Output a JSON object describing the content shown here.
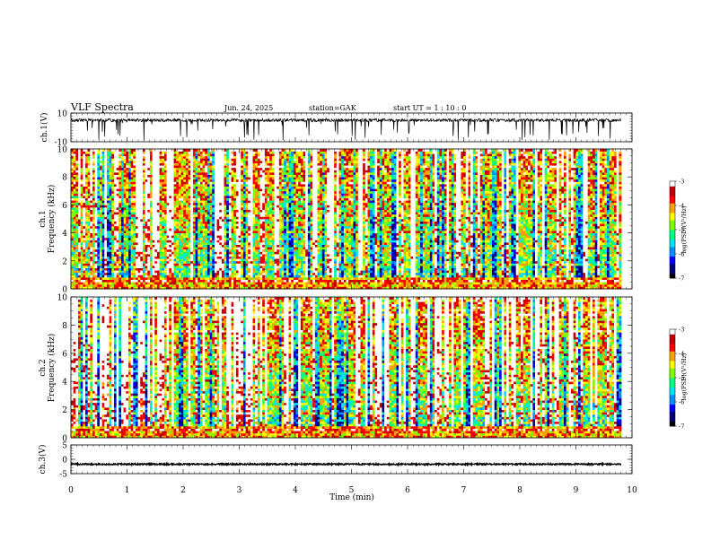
{
  "header": {
    "title": "VLF Spectra",
    "date": "Jun. 24, 2025",
    "station": "station=GAK",
    "start_ut": "start UT = 1 : 10 : 0"
  },
  "colors": {
    "trace": "#000000",
    "colormap": [
      "#000000",
      "#00007a",
      "#0000ff",
      "#0090ff",
      "#00e0ff",
      "#00ff80",
      "#80ff00",
      "#ffff00",
      "#ffa000",
      "#ff0000",
      "#c00000",
      "#ffffff"
    ]
  },
  "chart_data": [
    {
      "type": "line",
      "id": "ch1-waveform",
      "ylabel": "ch.1(V)",
      "ylim": [
        -10,
        10
      ],
      "y_ticks": [
        "10",
        "-10"
      ],
      "xlim": [
        0,
        10
      ],
      "description_level": "noisy waveform centered near +5 V with bursts reaching ±10 V"
    },
    {
      "type": "heatmap",
      "id": "ch1-spectrogram",
      "ylabel": "ch.1\nFrequency (kHz)",
      "ylabel_line1": "ch.1",
      "ylabel_line2": "Frequency (kHz)",
      "ylim": [
        0,
        10
      ],
      "y_ticks": [
        "0",
        "2",
        "4",
        "6",
        "8",
        "10"
      ],
      "xlim": [
        0,
        9.8
      ],
      "colorbar": {
        "label": "log(PSD)(V²/Hz)",
        "range": [
          -7,
          -3
        ],
        "ticks": [
          "-3",
          "-4",
          "-5",
          "-6",
          "-7"
        ]
      }
    },
    {
      "type": "heatmap",
      "id": "ch2-spectrogram",
      "ylabel": "ch.2\nFrequency (kHz)",
      "ylabel_line1": "ch.2",
      "ylabel_line2": "Frequency (kHz)",
      "ylim": [
        0,
        10
      ],
      "y_ticks": [
        "0",
        "2",
        "4",
        "6",
        "8",
        "10"
      ],
      "xlim": [
        0,
        9.8
      ],
      "colorbar": {
        "label": "log(PSD)(V²/Hz)",
        "range": [
          -7,
          -3
        ],
        "ticks": [
          "-3",
          "-4",
          "-5",
          "-6",
          "-7"
        ]
      }
    },
    {
      "type": "line",
      "id": "ch3-waveform",
      "ylabel": "ch.3(V)",
      "ylim": [
        -5,
        5
      ],
      "y_ticks": [
        "5",
        "0",
        "-5"
      ],
      "xlim": [
        0,
        10
      ],
      "description_level": "nearly constant trace around -1.7 V"
    }
  ],
  "x_axis": {
    "label": "Time (min)",
    "ticks": [
      "0",
      "1",
      "2",
      "3",
      "4",
      "5",
      "6",
      "7",
      "8",
      "9",
      "10"
    ],
    "range": [
      0,
      10
    ]
  }
}
